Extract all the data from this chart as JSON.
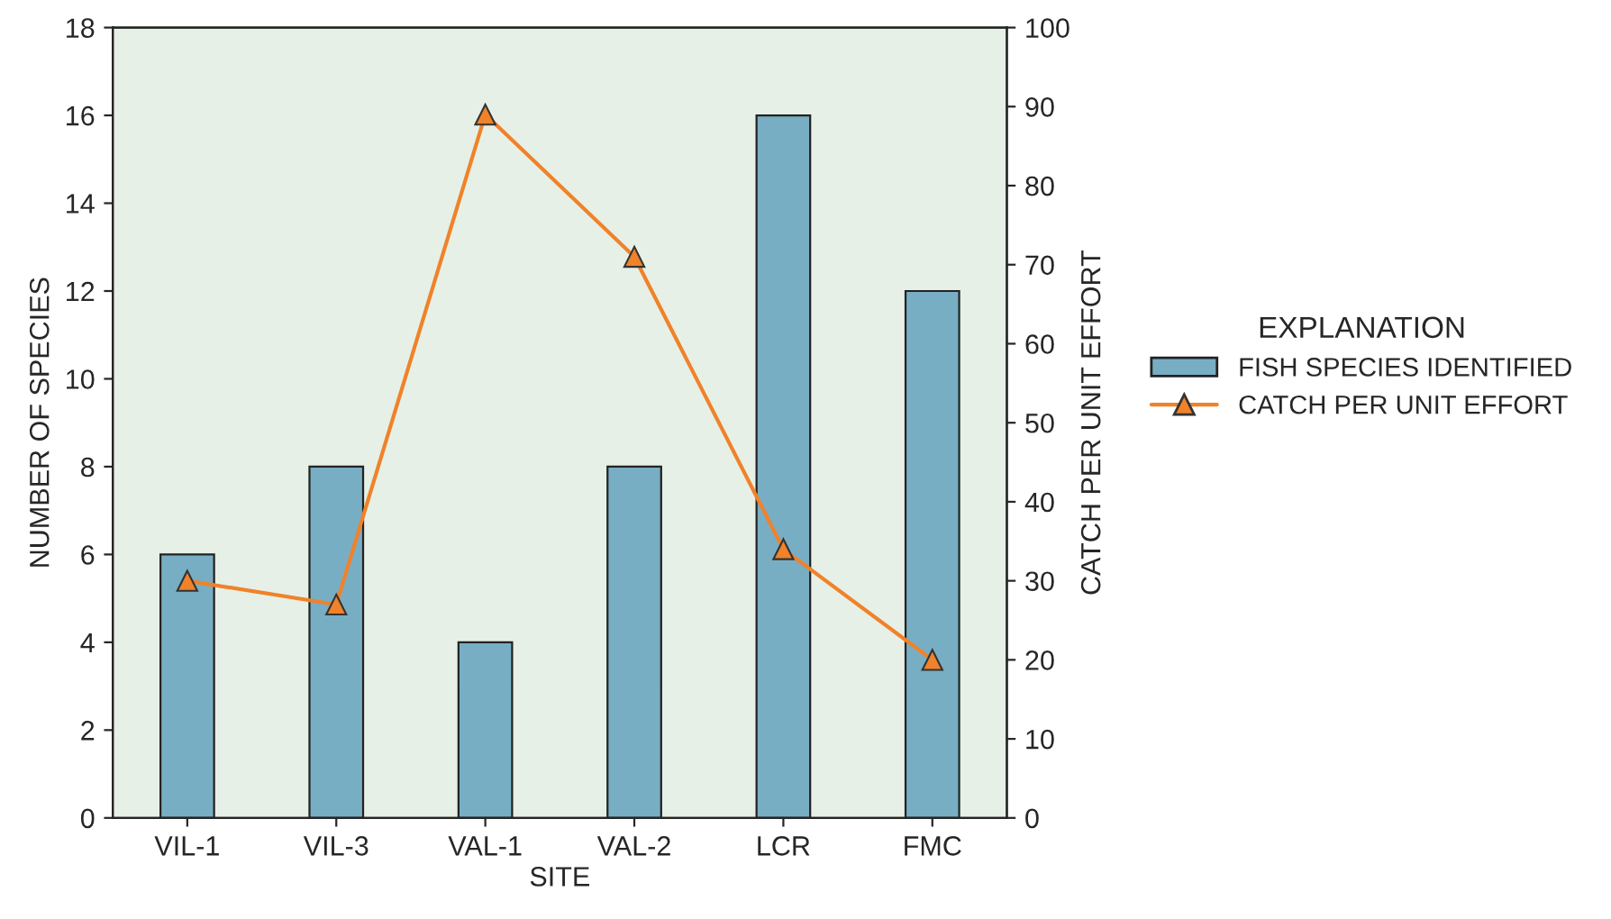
{
  "chart_data": {
    "type": "bar",
    "xlabel": "SITE",
    "ylabel": "NUMBER OF SPECIES",
    "y2label": "CATCH PER UNIT EFFORT",
    "legend_title": "EXPLANATION",
    "legend": "right",
    "categories": [
      "VIL-1",
      "VIL-3",
      "VAL-1",
      "VAL-2",
      "LCR",
      "FMC"
    ],
    "series": [
      {
        "name": "FISH SPECIES IDENTIFIED",
        "color": "#78aec4",
        "values": [
          6,
          8,
          4,
          8,
          16,
          12
        ]
      },
      {
        "name": "CATCH PER UNIT EFFORT",
        "type": "line",
        "axis": "y2",
        "color": "#f0822a",
        "marker": "triangle",
        "values": [
          30,
          27,
          89,
          71,
          34,
          20
        ]
      }
    ],
    "ylim": [
      0,
      18
    ],
    "yticks": [
      0,
      2,
      4,
      6,
      8,
      10,
      12,
      14,
      16,
      18
    ],
    "y2lim": [
      0,
      100
    ],
    "y2ticks": [
      0,
      10,
      20,
      30,
      40,
      50,
      60,
      70,
      80,
      90,
      100
    ]
  }
}
